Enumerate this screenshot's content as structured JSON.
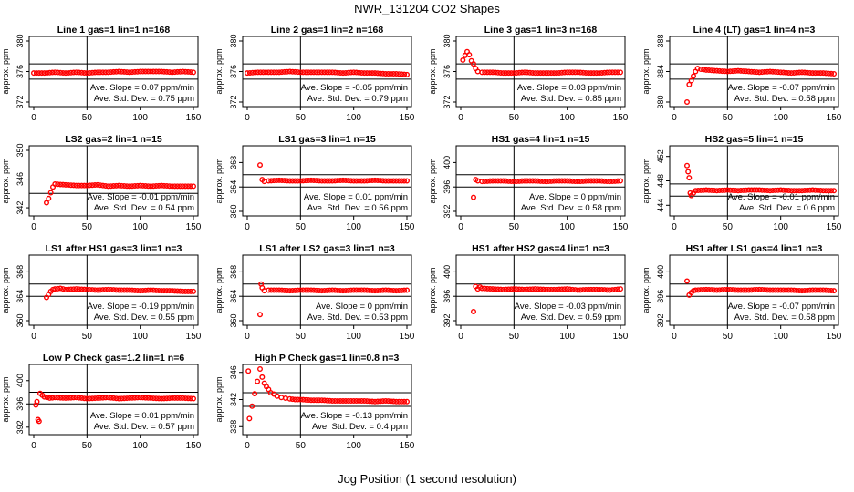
{
  "figure": {
    "title": "NWR_131204  CO2 Shapes",
    "xlabel": "Jog Position (1 second resolution)"
  },
  "colors": {
    "points": "#ff0000",
    "axes": "#000000"
  },
  "chart_data": [
    {
      "type": "scatter",
      "title": "Line 1 gas=1 lin=1 n=168",
      "ylabel": "approx. ppm",
      "xticks": [
        0,
        50,
        100,
        150
      ],
      "yticks": [
        372,
        376,
        380
      ],
      "xlim": [
        0,
        150
      ],
      "ylim": [
        372,
        380
      ],
      "hline": [
        375,
        377
      ],
      "vline": 50,
      "slope": "Ave. Slope = 0.07  ppm/min",
      "sd": "Ave. Std. Dev. = 0.75  ppm",
      "series": [
        {
          "x": [
            0,
            10,
            20,
            30,
            40,
            50,
            60,
            70,
            80,
            90,
            100,
            110,
            120,
            130,
            140,
            150
          ],
          "y": [
            375.8,
            375.8,
            375.9,
            375.8,
            375.9,
            375.8,
            375.9,
            375.9,
            376.0,
            375.9,
            376.0,
            376.0,
            376.0,
            375.9,
            376.0,
            375.9
          ]
        }
      ]
    },
    {
      "type": "scatter",
      "title": "Line 2 gas=1 lin=2 n=168",
      "ylabel": "approx. ppm",
      "xticks": [
        0,
        50,
        100,
        150
      ],
      "yticks": [
        372,
        376,
        380
      ],
      "xlim": [
        0,
        150
      ],
      "ylim": [
        372,
        380
      ],
      "hline": [
        375,
        377
      ],
      "vline": 50,
      "slope": "Ave. Slope = -0.05  ppm/min",
      "sd": "Ave. Std. Dev. = 0.79  ppm",
      "series": [
        {
          "x": [
            0,
            10,
            20,
            30,
            40,
            50,
            60,
            70,
            80,
            90,
            100,
            110,
            120,
            130,
            140,
            150
          ],
          "y": [
            375.8,
            375.9,
            375.9,
            375.9,
            376.0,
            375.9,
            375.9,
            375.9,
            375.9,
            375.8,
            375.9,
            375.8,
            375.8,
            375.7,
            375.7,
            375.6
          ]
        }
      ]
    },
    {
      "type": "scatter",
      "title": "Line 3 gas=1 lin=3 n=168",
      "ylabel": "approx. ppm",
      "xticks": [
        0,
        50,
        100,
        150
      ],
      "yticks": [
        372,
        376,
        380
      ],
      "xlim": [
        0,
        150
      ],
      "ylim": [
        372,
        380
      ],
      "hline": [
        375,
        377
      ],
      "vline": 50,
      "slope": "Ave. Slope = 0.03  ppm/min",
      "sd": "Ave. Std. Dev. = 0.85  ppm",
      "series": [
        {
          "x": [
            2,
            4,
            6,
            8,
            10,
            12,
            14,
            16,
            20,
            30,
            40,
            50,
            60,
            70,
            80,
            90,
            100,
            110,
            120,
            130,
            140,
            150
          ],
          "y": [
            377.5,
            378.1,
            378.6,
            378.2,
            377.4,
            377.0,
            376.4,
            376.0,
            375.9,
            375.9,
            375.8,
            375.8,
            375.9,
            375.8,
            375.8,
            375.8,
            375.9,
            375.9,
            375.8,
            375.8,
            375.9,
            375.9
          ]
        }
      ]
    },
    {
      "type": "scatter",
      "title": "Line 4 (LT) gas=1 lin=4 n=3",
      "ylabel": "approx. ppm",
      "xticks": [
        0,
        50,
        100,
        150
      ],
      "yticks": [
        380,
        384,
        388
      ],
      "xlim": [
        0,
        150
      ],
      "ylim": [
        380,
        388
      ],
      "hline": [
        383,
        385
      ],
      "vline": 50,
      "slope": "Ave. Slope = -0.07  ppm/min",
      "sd": "Ave. Std. Dev. = 0.58  ppm",
      "series": [
        {
          "x": [
            12,
            14,
            16,
            18,
            20,
            22,
            25,
            30,
            40,
            50,
            60,
            70,
            80,
            90,
            100,
            110,
            120,
            130,
            140,
            150
          ],
          "y": [
            380.0,
            382.3,
            382.8,
            383.4,
            384.0,
            384.4,
            384.3,
            384.2,
            384.1,
            384.0,
            384.1,
            384.0,
            383.9,
            384.0,
            383.9,
            383.8,
            383.9,
            383.8,
            383.8,
            383.7
          ]
        }
      ]
    },
    {
      "type": "scatter",
      "title": "LS2 gas=2 lin=1 n=15",
      "ylabel": "approx. ppm",
      "xticks": [
        0,
        50,
        100,
        150
      ],
      "yticks": [
        342,
        346,
        350
      ],
      "xlim": [
        0,
        150
      ],
      "ylim": [
        341.5,
        350
      ],
      "hline": [
        344,
        346
      ],
      "vline": 50,
      "slope": "Ave. Slope = -0.01  ppm/min",
      "sd": "Ave. Std. Dev. = 0.54  ppm",
      "series": [
        {
          "x": [
            12,
            14,
            16,
            18,
            20,
            30,
            40,
            50,
            60,
            70,
            80,
            90,
            100,
            110,
            120,
            130,
            140,
            150
          ],
          "y": [
            342.7,
            343.3,
            344.1,
            344.9,
            345.3,
            345.2,
            345.1,
            345.1,
            345.2,
            345.0,
            345.1,
            345.0,
            345.1,
            345.0,
            345.1,
            345.0,
            345.0,
            345.0
          ]
        }
      ]
    },
    {
      "type": "scatter",
      "title": "LS1 gas=3 lin=1 n=15",
      "ylabel": "approx. ppm",
      "xticks": [
        0,
        50,
        100,
        150
      ],
      "yticks": [
        360,
        364,
        368
      ],
      "xlim": [
        0,
        150
      ],
      "ylim": [
        360,
        370
      ],
      "hline": [
        364,
        366
      ],
      "vline": 50,
      "slope": "Ave. Slope = 0.01  ppm/min",
      "sd": "Ave. Std. Dev. = 0.56  ppm",
      "series": [
        {
          "x": [
            12,
            14,
            16,
            20,
            30,
            40,
            50,
            60,
            70,
            80,
            90,
            100,
            110,
            120,
            130,
            140,
            150
          ],
          "y": [
            367.6,
            365.2,
            364.9,
            365.0,
            365.1,
            365.0,
            365.0,
            365.1,
            365.0,
            365.0,
            365.1,
            365.0,
            365.0,
            365.1,
            365.0,
            365.0,
            365.0
          ]
        }
      ]
    },
    {
      "type": "scatter",
      "title": "HS1 gas=4 lin=1 n=15",
      "ylabel": "approx. ppm",
      "xticks": [
        0,
        50,
        100,
        150
      ],
      "yticks": [
        392,
        396,
        400
      ],
      "xlim": [
        0,
        150
      ],
      "ylim": [
        392,
        402
      ],
      "hline": [
        396,
        398
      ],
      "vline": 50,
      "slope": "Ave. Slope = 0  ppm/min",
      "sd": "Ave. Std. Dev. = 0.58  ppm",
      "series": [
        {
          "x": [
            12,
            14,
            16,
            20,
            30,
            40,
            50,
            60,
            70,
            80,
            90,
            100,
            110,
            120,
            130,
            140,
            150
          ],
          "y": [
            394.3,
            397.2,
            397.0,
            396.9,
            397.0,
            397.0,
            396.9,
            397.0,
            397.0,
            396.9,
            397.0,
            397.0,
            396.9,
            397.0,
            397.0,
            396.9,
            397.0
          ]
        }
      ]
    },
    {
      "type": "scatter",
      "title": "HS2 gas=5 lin=1 n=15",
      "ylabel": "approx. ppm",
      "xticks": [
        0,
        50,
        100,
        150
      ],
      "yticks": [
        444,
        448,
        452
      ],
      "xlim": [
        0,
        150
      ],
      "ylim": [
        443,
        453
      ],
      "hline": [
        445.5,
        447.5
      ],
      "vline": 50,
      "slope": "Ave. Slope = -0.01  ppm/min",
      "sd": "Ave. Std. Dev. = 0.6  ppm",
      "series": [
        {
          "x": [
            12,
            13,
            14,
            15,
            16,
            18,
            20,
            30,
            40,
            50,
            60,
            70,
            80,
            90,
            100,
            110,
            120,
            130,
            140,
            150
          ],
          "y": [
            450.5,
            449.5,
            448.5,
            446.0,
            445.6,
            446.0,
            446.4,
            446.5,
            446.4,
            446.5,
            446.4,
            446.5,
            446.5,
            446.4,
            446.5,
            446.4,
            446.4,
            446.5,
            446.4,
            446.4
          ]
        }
      ]
    },
    {
      "type": "scatter",
      "title": "LS1 after HS1 gas=3 lin=1 n=3",
      "ylabel": "approx. ppm",
      "xticks": [
        0,
        50,
        100,
        150
      ],
      "yticks": [
        360,
        364,
        368
      ],
      "xlim": [
        0,
        150
      ],
      "ylim": [
        360,
        370
      ],
      "hline": [
        364,
        366
      ],
      "vline": 50,
      "slope": "Ave. Slope = -0.19  ppm/min",
      "sd": "Ave. Std. Dev. = 0.55  ppm",
      "series": [
        {
          "x": [
            12,
            14,
            16,
            18,
            20,
            25,
            30,
            40,
            50,
            60,
            70,
            80,
            90,
            100,
            110,
            120,
            130,
            140,
            150
          ],
          "y": [
            363.8,
            364.3,
            364.8,
            365.1,
            365.2,
            365.3,
            365.1,
            365.2,
            365.1,
            365.0,
            365.1,
            365.0,
            365.0,
            364.9,
            365.0,
            364.9,
            364.9,
            364.8,
            364.8
          ]
        }
      ]
    },
    {
      "type": "scatter",
      "title": "LS1 after LS2 gas=3 lin=1 n=3",
      "ylabel": "approx. ppm",
      "xticks": [
        0,
        50,
        100,
        150
      ],
      "yticks": [
        360,
        364,
        368
      ],
      "xlim": [
        0,
        150
      ],
      "ylim": [
        360,
        370
      ],
      "hline": [
        364,
        366
      ],
      "vline": 50,
      "slope": "Ave. Slope = 0  ppm/min",
      "sd": "Ave. Std. Dev. = 0.53  ppm",
      "series": [
        {
          "x": [
            12,
            13,
            14,
            16,
            20,
            30,
            40,
            50,
            60,
            70,
            80,
            90,
            100,
            110,
            120,
            130,
            140,
            150
          ],
          "y": [
            361.0,
            366.0,
            365.4,
            364.9,
            365.0,
            365.0,
            364.9,
            365.0,
            365.0,
            364.9,
            365.0,
            364.9,
            365.0,
            365.0,
            364.9,
            365.0,
            364.9,
            365.0
          ]
        }
      ]
    },
    {
      "type": "scatter",
      "title": "HS1 after HS2 gas=4 lin=1 n=3",
      "ylabel": "approx. ppm",
      "xticks": [
        0,
        50,
        100,
        150
      ],
      "yticks": [
        392,
        396,
        400
      ],
      "xlim": [
        0,
        150
      ],
      "ylim": [
        392,
        402
      ],
      "hline": [
        396,
        398
      ],
      "vline": 50,
      "slope": "Ave. Slope = -0.03  ppm/min",
      "sd": "Ave. Std. Dev. = 0.59  ppm",
      "series": [
        {
          "x": [
            12,
            14,
            16,
            18,
            20,
            30,
            40,
            50,
            60,
            70,
            80,
            90,
            100,
            110,
            120,
            130,
            140,
            150
          ],
          "y": [
            393.5,
            397.6,
            397.2,
            397.5,
            397.3,
            397.2,
            397.1,
            397.2,
            397.1,
            397.2,
            397.1,
            397.1,
            397.2,
            397.0,
            397.1,
            397.1,
            397.0,
            397.2
          ]
        }
      ]
    },
    {
      "type": "scatter",
      "title": "HS1 after LS1 gas=4 lin=1 n=3",
      "ylabel": "approx. ppm",
      "xticks": [
        0,
        50,
        100,
        150
      ],
      "yticks": [
        392,
        396,
        400
      ],
      "xlim": [
        0,
        150
      ],
      "ylim": [
        392,
        402
      ],
      "hline": [
        396,
        398
      ],
      "vline": 50,
      "slope": "Ave. Slope = -0.07  ppm/min",
      "sd": "Ave. Std. Dev. = 0.58  ppm",
      "series": [
        {
          "x": [
            12,
            14,
            16,
            18,
            20,
            30,
            40,
            50,
            60,
            70,
            80,
            90,
            100,
            110,
            120,
            130,
            140,
            150
          ],
          "y": [
            398.5,
            396.2,
            396.6,
            396.9,
            397.0,
            397.1,
            397.0,
            397.1,
            397.0,
            397.0,
            397.1,
            397.0,
            397.0,
            397.0,
            396.9,
            397.0,
            397.0,
            396.9
          ]
        }
      ]
    },
    {
      "type": "scatter",
      "title": "Low P Check gas=1.2 lin=1 n=6",
      "ylabel": "approx. ppm",
      "xticks": [
        0,
        50,
        100,
        150
      ],
      "yticks": [
        392,
        396,
        400
      ],
      "xlim": [
        0,
        150
      ],
      "ylim": [
        391.5,
        402
      ],
      "hline": [
        396,
        398
      ],
      "vline": 50,
      "slope": "Ave. Slope = 0.01  ppm/min",
      "sd": "Ave. Std. Dev. = 0.57  ppm",
      "series": [
        {
          "x": [
            2,
            3,
            4,
            5,
            6,
            8,
            10,
            15,
            20,
            30,
            40,
            50,
            60,
            70,
            80,
            90,
            100,
            110,
            120,
            130,
            140,
            150
          ],
          "y": [
            395.8,
            396.4,
            393.3,
            393.0,
            397.8,
            397.5,
            397.2,
            397.0,
            397.1,
            397.0,
            397.1,
            396.9,
            397.0,
            397.1,
            396.9,
            397.0,
            397.1,
            397.0,
            396.9,
            397.0,
            397.0,
            396.9
          ]
        }
      ]
    },
    {
      "type": "scatter",
      "title": "High P Check gas=1 lin=0.8 n=3",
      "ylabel": "approx. ppm",
      "xticks": [
        0,
        50,
        100,
        150
      ],
      "yticks": [
        338,
        342,
        346
      ],
      "xlim": [
        0,
        150
      ],
      "ylim": [
        337.5,
        346.5
      ],
      "hline": [
        341,
        343
      ],
      "vline": 50,
      "slope": "Ave. Slope = -0.13  ppm/min",
      "sd": "Ave. Std. Dev. = 0.4  ppm",
      "series": [
        {
          "x": [
            1,
            2,
            12,
            14,
            16,
            18,
            20,
            22,
            25,
            28,
            32,
            36,
            40,
            45,
            50,
            60,
            70,
            80,
            90,
            100,
            110,
            120,
            130,
            140,
            150
          ],
          "y": [
            346.2,
            339.2,
            346.5,
            345.3,
            344.4,
            343.9,
            343.5,
            343.0,
            342.8,
            342.5,
            342.3,
            342.2,
            342.1,
            342.0,
            342.0,
            341.9,
            341.9,
            341.8,
            341.8,
            341.8,
            341.8,
            341.7,
            341.8,
            341.7,
            341.7
          ]
        }
      ]
    }
  ]
}
